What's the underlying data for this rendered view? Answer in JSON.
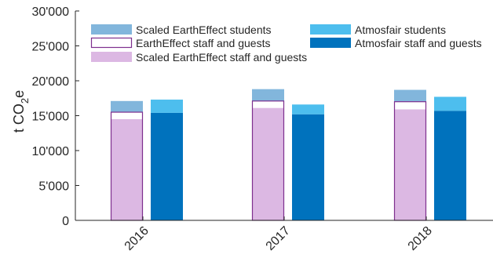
{
  "chart_data": {
    "type": "bar",
    "categories": [
      "2016",
      "2017",
      "2018"
    ],
    "ylabel": "t CO2e",
    "ylim": [
      0,
      30000
    ],
    "yticks": [
      0,
      5000,
      10000,
      15000,
      20000,
      25000,
      30000
    ],
    "ytick_labels": [
      "0",
      "5'000",
      "10'000",
      "15'000",
      "20'000",
      "25'000",
      "30'000"
    ],
    "grid": false,
    "legend_position": "top",
    "series": [
      {
        "name": "Scaled EarthEffect staff and guests",
        "stack": "EarthEffect",
        "values": [
          14500,
          16100,
          15900
        ],
        "color": "#dcb8e3"
      },
      {
        "name": "EarthEffect staff and guests",
        "stack": "EarthEffect",
        "values": [
          15500,
          17100,
          17000
        ],
        "color": "#7e2f8e",
        "style": "outline"
      },
      {
        "name": "Scaled EarthEffect students",
        "stack": "EarthEffect",
        "values": [
          1600,
          1700,
          1700
        ],
        "color": "#82b6dc"
      },
      {
        "name": "Atmosfair staff and guests",
        "stack": "Atmosfair",
        "values": [
          15400,
          15200,
          15700
        ],
        "color": "#0072bd"
      },
      {
        "name": "Atmosfair students",
        "stack": "Atmosfair",
        "values": [
          1900,
          1400,
          2000
        ],
        "color": "#4dbeee"
      }
    ],
    "legend": [
      {
        "label": "Scaled EarthEffect students",
        "color": "#82b6dc",
        "style": "fill"
      },
      {
        "label": "EarthEffect staff and guests",
        "color": "#7e2f8e",
        "style": "outline"
      },
      {
        "label": "Scaled EarthEffect staff and guests",
        "color": "#dcb8e3",
        "style": "fill"
      },
      {
        "label": "Atmosfair students",
        "color": "#4dbeee",
        "style": "fill"
      },
      {
        "label": "Atmosfair staff and guests",
        "color": "#0072bd",
        "style": "fill"
      }
    ]
  }
}
